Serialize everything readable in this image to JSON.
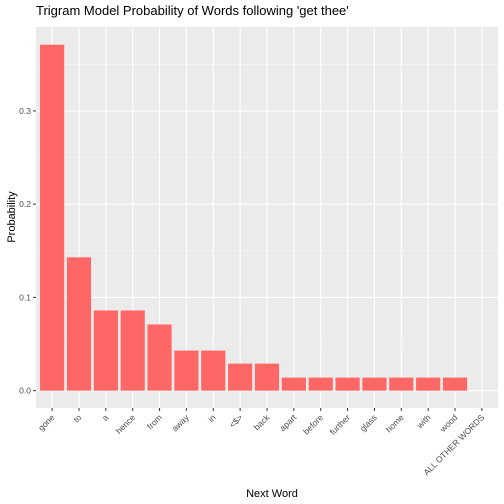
{
  "chart_data": {
    "type": "bar",
    "title": "Trigram Model Probability of Words following 'get thee'",
    "xlabel": "Next Word",
    "ylabel": "Probability",
    "categories": [
      "gone",
      "to",
      "a",
      "hence",
      "from",
      "away",
      "in",
      "<$>",
      "back",
      "apart",
      "before",
      "further",
      "glass",
      "home",
      "with",
      "wood",
      "ALL OTHER WORDS"
    ],
    "values": [
      0.371,
      0.143,
      0.086,
      0.086,
      0.071,
      0.043,
      0.043,
      0.029,
      0.029,
      0.014,
      0.014,
      0.014,
      0.014,
      0.014,
      0.014,
      0.014,
      0.0
    ],
    "yticks": [
      0.0,
      0.1,
      0.2,
      0.3
    ],
    "ytick_labels": [
      "0.0",
      "0.1",
      "0.2",
      "0.3"
    ],
    "ylim": [
      -0.0186,
      0.39
    ],
    "grid": true,
    "legend": "none"
  },
  "colors": {
    "bar": "#ff6666",
    "panel": "#ebebeb",
    "grid_major": "#ffffff",
    "grid_minor": "#f5f5f5",
    "tick": "#333333"
  }
}
